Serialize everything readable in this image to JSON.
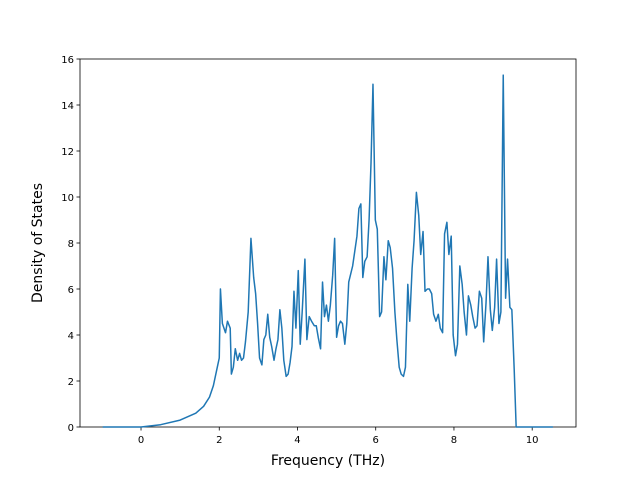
{
  "chart_data": {
    "type": "line",
    "xlabel": "Frequency (THz)",
    "ylabel": "Density of States",
    "color": "#1f77b4",
    "x": [
      -0.98,
      0,
      0.5,
      1.0,
      1.4,
      1.6,
      1.75,
      1.85,
      1.95,
      2.0,
      2.03,
      2.08,
      2.16,
      2.21,
      2.28,
      2.31,
      2.36,
      2.41,
      2.47,
      2.52,
      2.57,
      2.62,
      2.67,
      2.74,
      2.81,
      2.88,
      2.93,
      2.98,
      3.03,
      3.09,
      3.14,
      3.19,
      3.24,
      3.29,
      3.34,
      3.4,
      3.45,
      3.5,
      3.55,
      3.6,
      3.65,
      3.71,
      3.76,
      3.81,
      3.86,
      3.91,
      3.96,
      4.02,
      4.07,
      4.12,
      4.19,
      4.24,
      4.3,
      4.36,
      4.43,
      4.48,
      4.53,
      4.59,
      4.64,
      4.69,
      4.74,
      4.79,
      4.84,
      4.9,
      4.95,
      5.0,
      5.05,
      5.1,
      5.15,
      5.21,
      5.26,
      5.31,
      5.41,
      5.52,
      5.57,
      5.62,
      5.67,
      5.72,
      5.78,
      5.83,
      5.88,
      5.93,
      5.99,
      6.04,
      6.1,
      6.15,
      6.21,
      6.26,
      6.32,
      6.37,
      6.43,
      6.49,
      6.54,
      6.6,
      6.65,
      6.71,
      6.76,
      6.82,
      6.87,
      6.93,
      6.98,
      7.04,
      7.1,
      7.15,
      7.21,
      7.26,
      7.32,
      7.37,
      7.43,
      7.48,
      7.54,
      7.6,
      7.65,
      7.71,
      7.76,
      7.82,
      7.87,
      7.93,
      7.98,
      8.04,
      8.09,
      8.15,
      8.21,
      8.26,
      8.32,
      8.37,
      8.43,
      8.48,
      8.54,
      8.59,
      8.65,
      8.71,
      8.76,
      8.82,
      8.87,
      8.93,
      8.98,
      9.04,
      9.09,
      9.15,
      9.2,
      9.26,
      9.32,
      9.37,
      9.43,
      9.48,
      9.54,
      9.59,
      10.53
    ],
    "values": [
      0,
      0,
      0.1,
      0.3,
      0.6,
      0.9,
      1.3,
      1.8,
      2.6,
      3.0,
      6.0,
      4.5,
      4.1,
      4.6,
      4.3,
      2.3,
      2.6,
      3.4,
      2.9,
      3.2,
      2.9,
      3.0,
      3.7,
      5.0,
      8.2,
      6.5,
      5.8,
      4.5,
      3.0,
      2.7,
      3.8,
      4.0,
      4.9,
      3.9,
      3.5,
      2.9,
      3.4,
      3.8,
      5.1,
      4.3,
      2.9,
      2.2,
      2.3,
      2.8,
      3.5,
      5.9,
      4.3,
      6.8,
      3.6,
      5.0,
      7.3,
      3.8,
      4.8,
      4.6,
      4.4,
      4.4,
      3.9,
      3.4,
      6.3,
      4.8,
      5.3,
      4.6,
      5.3,
      6.6,
      8.2,
      3.9,
      4.4,
      4.6,
      4.5,
      3.6,
      4.5,
      6.3,
      7.0,
      8.3,
      9.5,
      9.7,
      6.5,
      7.2,
      7.4,
      9.0,
      11.5,
      14.9,
      9.0,
      8.6,
      4.8,
      5.0,
      7.4,
      6.4,
      8.1,
      7.8,
      6.9,
      5.0,
      3.8,
      2.6,
      2.3,
      2.2,
      2.6,
      6.2,
      4.6,
      6.9,
      8.1,
      10.2,
      9.2,
      7.5,
      8.5,
      5.9,
      6.0,
      6.0,
      5.8,
      4.9,
      4.6,
      4.9,
      4.3,
      4.1,
      8.4,
      8.9,
      7.5,
      8.3,
      4.0,
      3.1,
      3.6,
      7.0,
      6.2,
      5.0,
      4.0,
      5.7,
      5.3,
      4.8,
      4.3,
      4.4,
      5.9,
      5.6,
      3.7,
      5.4,
      7.4,
      5.1,
      4.2,
      5.2,
      7.3,
      4.5,
      5.0,
      15.3,
      5.6,
      7.3,
      5.2,
      5.1,
      2.5,
      0,
      0
    ],
    "xlim": [
      -1.56,
      11.12
    ],
    "ylim": [
      0,
      16
    ],
    "xticks": [
      0,
      2,
      4,
      6,
      8,
      10
    ],
    "yticks": [
      0,
      2,
      4,
      6,
      8,
      10,
      12,
      14,
      16
    ]
  }
}
